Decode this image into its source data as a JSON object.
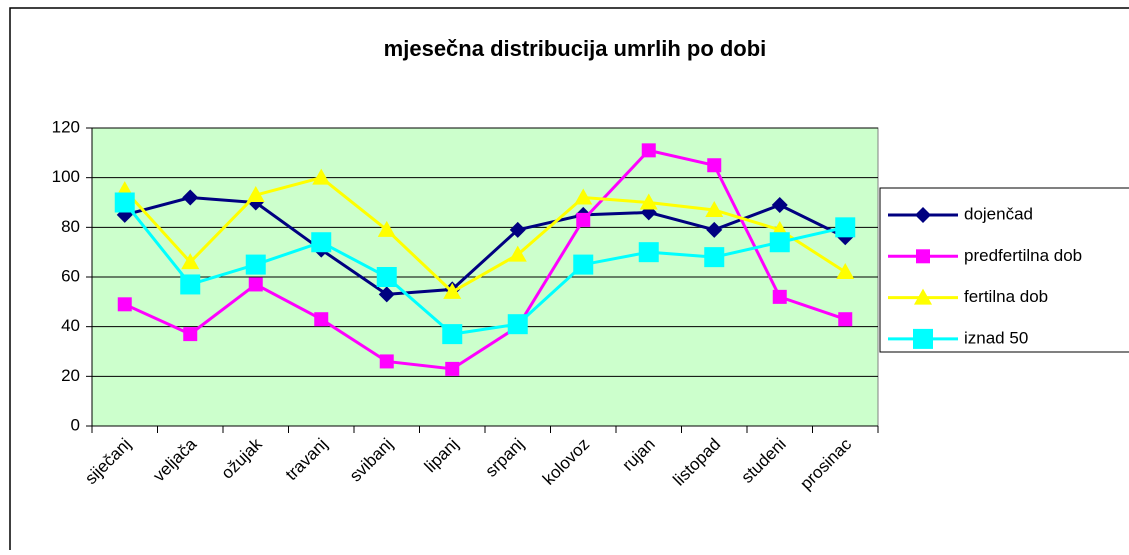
{
  "chart_data": {
    "type": "line",
    "title": "mjesečna distribucija umrlih po dobi",
    "categories": [
      "siječanj",
      "veljača",
      "ožujak",
      "travanj",
      "svibanj",
      "lipanj",
      "srpanj",
      "kolovoz",
      "rujan",
      "listopad",
      "studeni",
      "prosinac"
    ],
    "series": [
      {
        "name": "dojenčad",
        "color": "#000080",
        "marker": "diamond",
        "values": [
          85,
          92,
          90,
          71,
          53,
          55,
          79,
          85,
          86,
          79,
          89,
          76
        ]
      },
      {
        "name": "predfertilna dob",
        "color": "#ff00ff",
        "marker": "square",
        "values": [
          49,
          37,
          57,
          43,
          26,
          23,
          40,
          83,
          111,
          105,
          52,
          43
        ]
      },
      {
        "name": "fertilna dob",
        "color": "#ffff00",
        "marker": "triangle",
        "values": [
          95,
          66,
          93,
          100,
          79,
          54,
          69,
          92,
          90,
          87,
          79,
          62
        ]
      },
      {
        "name": "iznad 50",
        "color": "#00ffff",
        "marker": "bigsquare",
        "values": [
          90,
          57,
          65,
          74,
          60,
          37,
          41,
          65,
          70,
          68,
          74,
          80
        ]
      }
    ],
    "ylim": [
      0,
      120
    ],
    "yticks": [
      0,
      20,
      40,
      60,
      80,
      100,
      120
    ],
    "grid": true,
    "legend": "right"
  }
}
